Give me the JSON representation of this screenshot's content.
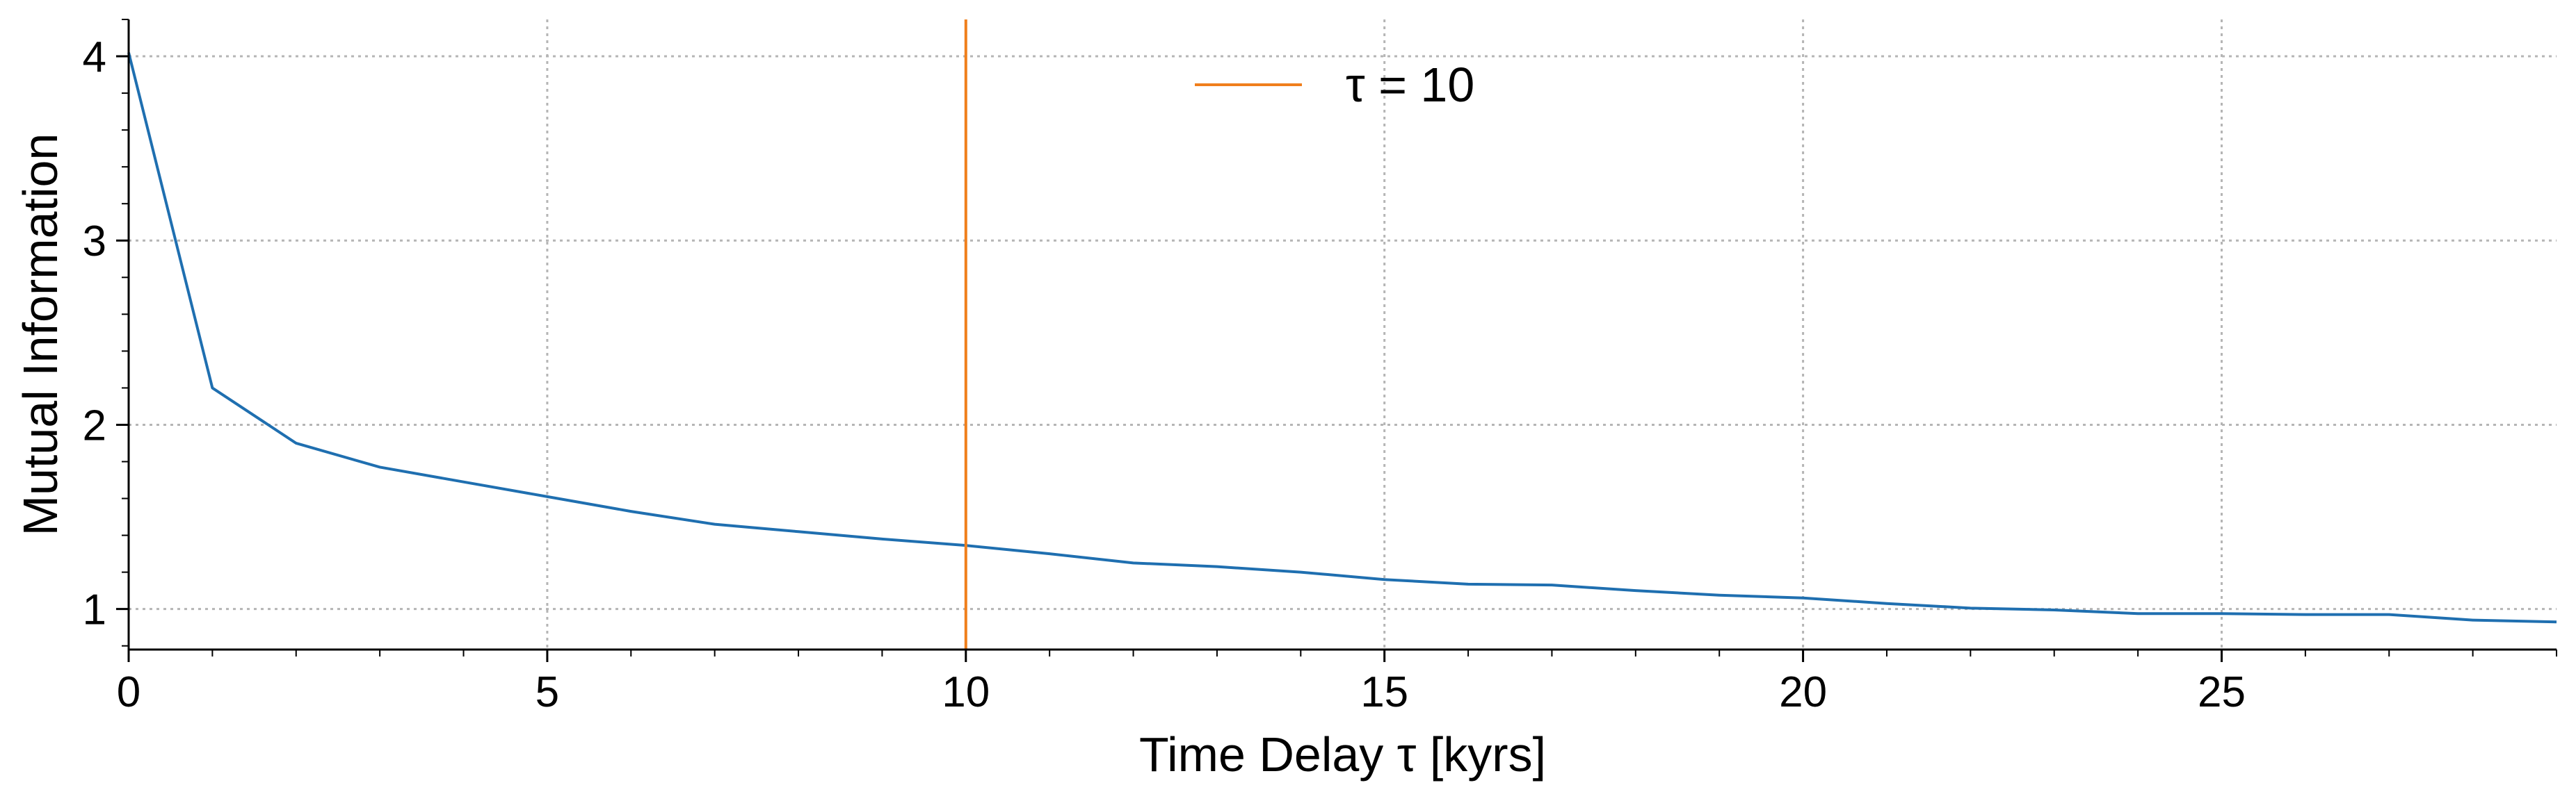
{
  "chart_data": {
    "type": "line",
    "xlabel": "Time Delay τ [kyrs]",
    "ylabel": "Mutual Information",
    "xlim": [
      0,
      29
    ],
    "ylim": [
      0.78,
      4.2
    ],
    "xticks": [
      0,
      5,
      10,
      15,
      20,
      25
    ],
    "yticks": [
      1,
      2,
      3,
      4
    ],
    "grid": true,
    "legend_position": "top-center",
    "colors": {
      "series": "#1f6fb0",
      "vline": "#f07f1c"
    },
    "series": [
      {
        "x": [
          0,
          1,
          2,
          3,
          4,
          5,
          6,
          7,
          8,
          9,
          10,
          11,
          12,
          13,
          14,
          15,
          16,
          17,
          18,
          19,
          20,
          21,
          22,
          23,
          24,
          25,
          26,
          27,
          28,
          29
        ],
        "values": [
          4.02,
          2.2,
          1.9,
          1.77,
          1.69,
          1.61,
          1.53,
          1.46,
          1.42,
          1.38,
          1.345,
          1.3,
          1.25,
          1.23,
          1.2,
          1.16,
          1.135,
          1.13,
          1.1,
          1.075,
          1.06,
          1.03,
          1.005,
          0.995,
          0.975,
          0.975,
          0.97,
          0.97,
          0.94,
          0.93
        ]
      }
    ],
    "vline": {
      "x": 10,
      "label": "τ = 10"
    }
  }
}
